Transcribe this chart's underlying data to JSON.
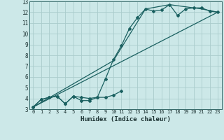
{
  "xlabel": "Humidex (Indice chaleur)",
  "xlim": [
    -0.5,
    23.5
  ],
  "ylim": [
    3,
    13
  ],
  "xticks": [
    0,
    1,
    2,
    3,
    4,
    5,
    6,
    7,
    8,
    9,
    10,
    11,
    12,
    13,
    14,
    15,
    16,
    17,
    18,
    19,
    20,
    21,
    22,
    23
  ],
  "yticks": [
    3,
    4,
    5,
    6,
    7,
    8,
    9,
    10,
    11,
    12,
    13
  ],
  "background_color": "#cce8e8",
  "grid_color": "#aacccc",
  "line_color": "#1a6060",
  "line1_x": [
    0,
    1,
    2,
    3,
    4,
    5,
    6,
    7,
    8,
    9,
    10,
    11
  ],
  "line1_y": [
    3.2,
    3.9,
    4.1,
    4.2,
    3.5,
    4.2,
    3.8,
    3.8,
    4.1,
    4.1,
    4.3,
    4.7
  ],
  "line2_x": [
    0,
    1,
    2,
    3,
    4,
    5,
    6,
    7,
    8,
    9,
    10,
    11,
    12,
    13,
    14,
    15,
    16,
    17,
    18,
    19,
    20,
    21,
    22,
    23
  ],
  "line2_y": [
    3.2,
    3.9,
    4.1,
    4.2,
    3.5,
    4.2,
    4.1,
    4.0,
    4.1,
    5.8,
    7.6,
    8.9,
    10.5,
    11.5,
    12.3,
    12.1,
    12.2,
    12.7,
    11.7,
    12.3,
    12.4,
    12.4,
    12.1,
    12.0
  ],
  "line3_x": [
    0,
    23
  ],
  "line3_y": [
    3.2,
    12.0
  ],
  "line4_x": [
    0,
    10,
    14,
    17,
    21,
    23
  ],
  "line4_y": [
    3.2,
    7.5,
    12.3,
    12.7,
    12.3,
    12.0
  ]
}
